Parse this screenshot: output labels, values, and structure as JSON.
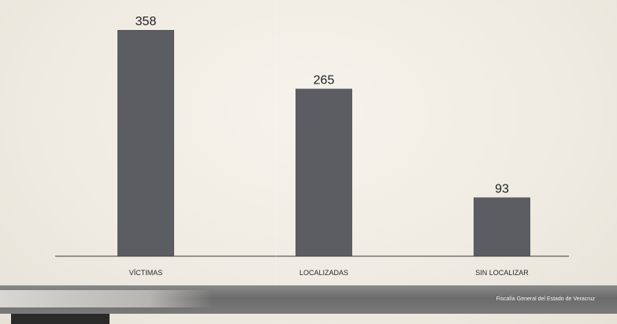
{
  "chart_data": {
    "type": "bar",
    "categories": [
      "VÍCTIMAS",
      "LOCALIZADAS",
      "SIN LOCALIZAR"
    ],
    "values": [
      358,
      265,
      93
    ],
    "ylim": [
      0,
      358
    ],
    "grid": false,
    "bar_color": "#5c5c63"
  },
  "footer": {
    "source": "Fiscalía General del Estado de Veracruz"
  }
}
